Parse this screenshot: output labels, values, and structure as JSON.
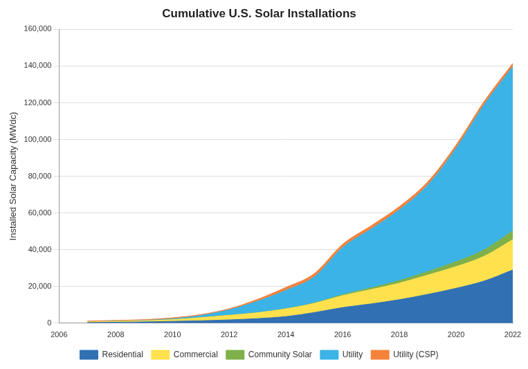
{
  "chart_data": {
    "type": "area",
    "stacked": true,
    "title": "Cumulative U.S. Solar Installations",
    "y_label": "Installed Solar Capacity (MWdc)",
    "x": [
      2007,
      2008,
      2009,
      2010,
      2011,
      2012,
      2013,
      2014,
      2015,
      2016,
      2017,
      2018,
      2019,
      2020,
      2021,
      2022
    ],
    "series": [
      {
        "name": "Residential",
        "color": "#3070b3",
        "values": [
          300,
          500,
          700,
          1000,
          1300,
          1800,
          2500,
          3600,
          5800,
          8500,
          10500,
          12800,
          15700,
          19000,
          23000,
          29000
        ]
      },
      {
        "name": "Commercial",
        "color": "#ffe14d",
        "values": [
          400,
          500,
          600,
          900,
          1700,
          2500,
          3200,
          4200,
          5000,
          6500,
          7800,
          9000,
          10500,
          11800,
          13500,
          16500
        ]
      },
      {
        "name": "Community Solar",
        "color": "#7fb04a",
        "values": [
          0,
          0,
          0,
          0,
          0,
          0,
          0,
          100,
          200,
          500,
          900,
          1400,
          1900,
          2700,
          3500,
          4800
        ]
      },
      {
        "name": "Utility",
        "color": "#3bb3e6",
        "values": [
          50,
          100,
          200,
          500,
          1200,
          3000,
          6300,
          10000,
          14250,
          25750,
          32050,
          38550,
          47150,
          61750,
          79250,
          89450
        ]
      },
      {
        "name": "Utility (CSP)",
        "color": "#f5823a",
        "values": [
          400,
          400,
          430,
          500,
          500,
          550,
          1000,
          1600,
          1750,
          1750,
          1750,
          1750,
          1750,
          1750,
          1750,
          1750
        ]
      }
    ],
    "xlim": [
      2006,
      2022
    ],
    "xticks": [
      2006,
      2008,
      2010,
      2012,
      2014,
      2016,
      2018,
      2020,
      2022
    ],
    "ylim": [
      0,
      160000
    ],
    "yticks": [
      0,
      {
        "value": 20000,
        "label": "20,000"
      },
      {
        "value": 40000,
        "label": "40,000"
      },
      {
        "value": 60000,
        "label": "60,000"
      },
      {
        "value": 80000,
        "label": "80,000"
      },
      {
        "value": 100000,
        "label": "100,000"
      },
      {
        "value": 120000,
        "label": "120,000"
      },
      {
        "value": 140000,
        "label": "140,000"
      },
      {
        "value": 160000,
        "label": "160,000"
      }
    ],
    "grid": true,
    "legend": "bottom"
  }
}
